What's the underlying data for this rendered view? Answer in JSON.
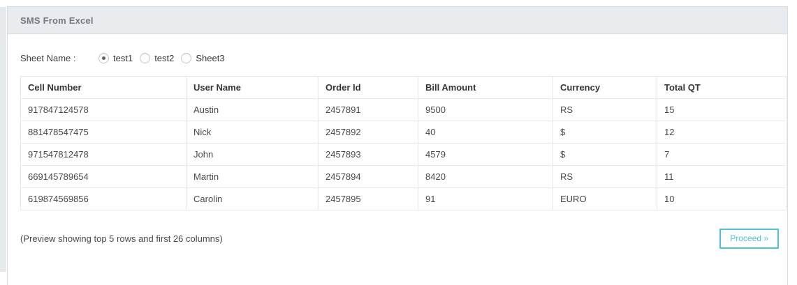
{
  "panel": {
    "title": "SMS From Excel"
  },
  "sheet_selector": {
    "label": "Sheet Name :",
    "options": [
      {
        "label": "test1",
        "selected": true
      },
      {
        "label": "test2",
        "selected": false
      },
      {
        "label": "Sheet3",
        "selected": false
      }
    ]
  },
  "table": {
    "columns": [
      "Cell Number",
      "User Name",
      "Order Id",
      "Bill Amount",
      "Currency",
      "Total QT"
    ],
    "rows": [
      [
        "917847124578",
        "Austin",
        "2457891",
        "9500",
        "RS",
        "15"
      ],
      [
        "881478547475",
        "Nick",
        "2457892",
        "40",
        "$",
        "12"
      ],
      [
        "971547812478",
        "John",
        "2457893",
        "4579",
        "$",
        "7"
      ],
      [
        "669145789654",
        "Martin",
        "2457894",
        "8420",
        "RS",
        "11"
      ],
      [
        "619874569856",
        "Carolin",
        "2457895",
        "91",
        "EURO",
        "10"
      ]
    ]
  },
  "footer": {
    "note": "(Preview showing top 5 rows and first 26 columns)",
    "proceed_label": "Proceed »"
  },
  "colors": {
    "accent": "#4fc3d4",
    "header_band": "#e9ecef",
    "table_border": "#e4e9f0",
    "title_text": "#75797e"
  }
}
